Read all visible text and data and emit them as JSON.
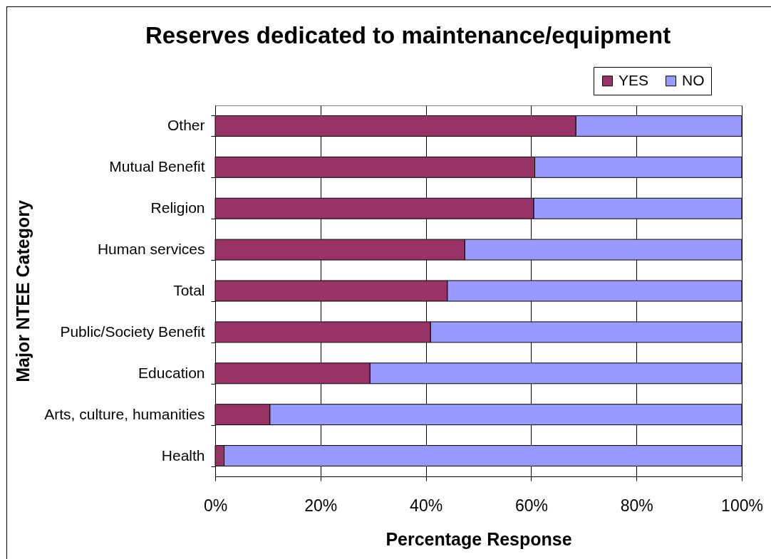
{
  "chart_data": {
    "type": "bar",
    "orientation": "horizontal",
    "stacked": true,
    "title": "Reserves dedicated to maintenance/equipment",
    "xlabel": "Percentage Response",
    "ylabel": "Major NTEE Category",
    "categories": [
      "Other",
      "Mutual Benefit",
      "Religion",
      "Human services",
      "Total",
      "Public/Society Benefit",
      "Education",
      "Arts, culture, humanities",
      "Health"
    ],
    "series": [
      {
        "name": "YES",
        "color": "#993366",
        "values": [
          68.5,
          60.7,
          60.5,
          47.4,
          44.1,
          40.9,
          29.4,
          10.4,
          1.7
        ]
      },
      {
        "name": "NO",
        "color": "#9999ff",
        "values": [
          31.5,
          39.3,
          39.5,
          52.6,
          55.9,
          59.1,
          70.6,
          89.6,
          98.3
        ]
      }
    ],
    "xlim": [
      0,
      100
    ],
    "xticks": [
      {
        "value": 0,
        "label": "0%"
      },
      {
        "value": 20,
        "label": "20%"
      },
      {
        "value": 40,
        "label": "40%"
      },
      {
        "value": 60,
        "label": "60%"
      },
      {
        "value": 80,
        "label": "80%"
      },
      {
        "value": 100,
        "label": "100%"
      }
    ],
    "grid": "x",
    "legend": "top right"
  }
}
